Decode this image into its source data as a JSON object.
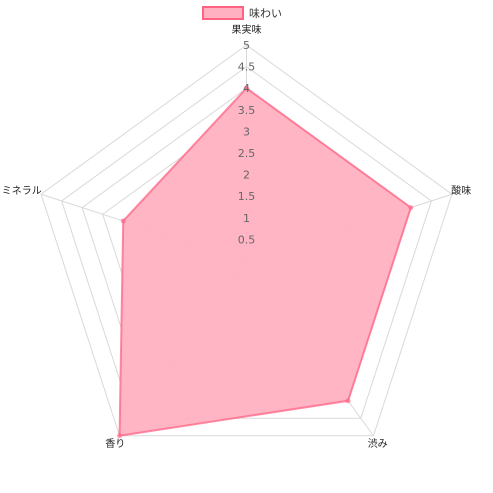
{
  "chart_data": {
    "type": "radar",
    "axes": [
      "果実味",
      "酸味",
      "渋み",
      "香り",
      "ミネラル"
    ],
    "rmin": 0,
    "rmax": 5,
    "tick_step": 0.5,
    "ticks": [
      "0.5",
      "1",
      "1.5",
      "2",
      "2.5",
      "3",
      "3.5",
      "4",
      "4.5",
      "5"
    ],
    "grid": true,
    "legend_position": "top",
    "series": [
      {
        "name": "味わい",
        "values": [
          4,
          4,
          4,
          5,
          3
        ],
        "fill_color": "#ffb1c1",
        "stroke_color": "#ff6384"
      }
    ]
  }
}
